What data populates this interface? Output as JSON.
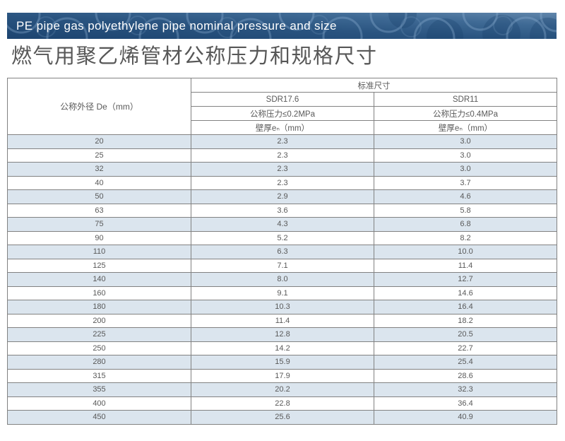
{
  "banner": {
    "title": "PE pipe gas polyethylene pipe nominal pressure and size"
  },
  "page_title": "燃气用聚乙烯管材公称压力和规格尺寸",
  "colors": {
    "banner_dark_blue": "#1c4470",
    "banner_light_blue": "#6186ab",
    "banner_ring_blue": "#8fb3d4",
    "row_alt_blue": "#dbe5ee",
    "table_border_gray": "#828282",
    "text_gray": "#595959"
  },
  "table": {
    "col1_header": "公称外径 De（mm）",
    "group_header": "标准尺寸",
    "sdr": [
      "SDR17.6",
      "SDR11"
    ],
    "pressure": [
      "公称压力≤0.2MPa",
      "公称压力≤0.4MPa"
    ],
    "wall": [
      "壁厚eₙ（mm）",
      "壁厚eₙ（mm）"
    ],
    "rows": [
      [
        "20",
        "2.3",
        "3.0"
      ],
      [
        "25",
        "2.3",
        "3.0"
      ],
      [
        "32",
        "2.3",
        "3.0"
      ],
      [
        "40",
        "2.3",
        "3.7"
      ],
      [
        "50",
        "2.9",
        "4.6"
      ],
      [
        "63",
        "3.6",
        "5.8"
      ],
      [
        "75",
        "4.3",
        "6.8"
      ],
      [
        "90",
        "5.2",
        "8.2"
      ],
      [
        "110",
        "6.3",
        "10.0"
      ],
      [
        "125",
        "7.1",
        "11.4"
      ],
      [
        "140",
        "8.0",
        "12.7"
      ],
      [
        "160",
        "9.1",
        "14.6"
      ],
      [
        "180",
        "10.3",
        "16.4"
      ],
      [
        "200",
        "11.4",
        "18.2"
      ],
      [
        "225",
        "12.8",
        "20.5"
      ],
      [
        "250",
        "14.2",
        "22.7"
      ],
      [
        "280",
        "15.9",
        "25.4"
      ],
      [
        "315",
        "17.9",
        "28.6"
      ],
      [
        "355",
        "20.2",
        "32.3"
      ],
      [
        "400",
        "22.8",
        "36.4"
      ],
      [
        "450",
        "25.6",
        "40.9"
      ]
    ]
  }
}
